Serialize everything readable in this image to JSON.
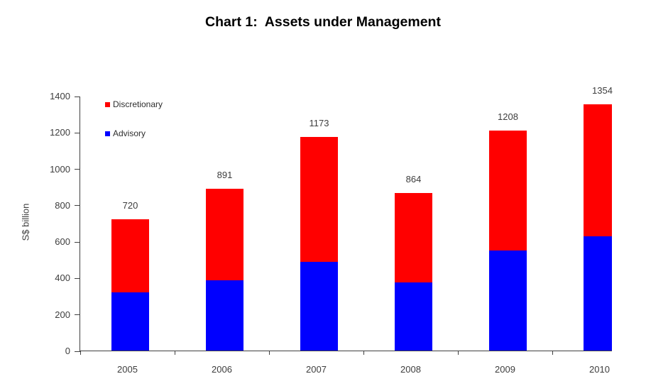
{
  "title": "Chart 1:  Assets under Management",
  "legend": {
    "items": [
      {
        "label": "Discretionary",
        "color": "#ff0000"
      },
      {
        "label": "Advisory",
        "color": "#0000ff"
      }
    ]
  },
  "chart_data": {
    "type": "bar",
    "stacked": true,
    "title": "Chart 1:  Assets under Management",
    "categories": [
      "2005",
      "2006",
      "2007",
      "2008",
      "2009",
      "2010"
    ],
    "series": [
      {
        "name": "Advisory",
        "color": "#0000ff",
        "values": [
          320,
          388,
          488,
          375,
          549,
          629
        ]
      },
      {
        "name": "Discretionary",
        "color": "#ff0000",
        "values": [
          400,
          503,
          685,
          489,
          659,
          725
        ]
      }
    ],
    "totals": [
      720,
      891,
      1173,
      864,
      1208,
      1354
    ],
    "xlabel": "",
    "ylabel": "S$ billion",
    "ylim": [
      0,
      1400
    ],
    "yticks": [
      0,
      200,
      400,
      600,
      800,
      1000,
      1200,
      1400
    ],
    "grid": false,
    "legend_position": "top-left"
  },
  "colors": {
    "axis": "#404040",
    "tick_text": "#3d3d3d",
    "title_text": "#000000",
    "background": "#ffffff"
  }
}
